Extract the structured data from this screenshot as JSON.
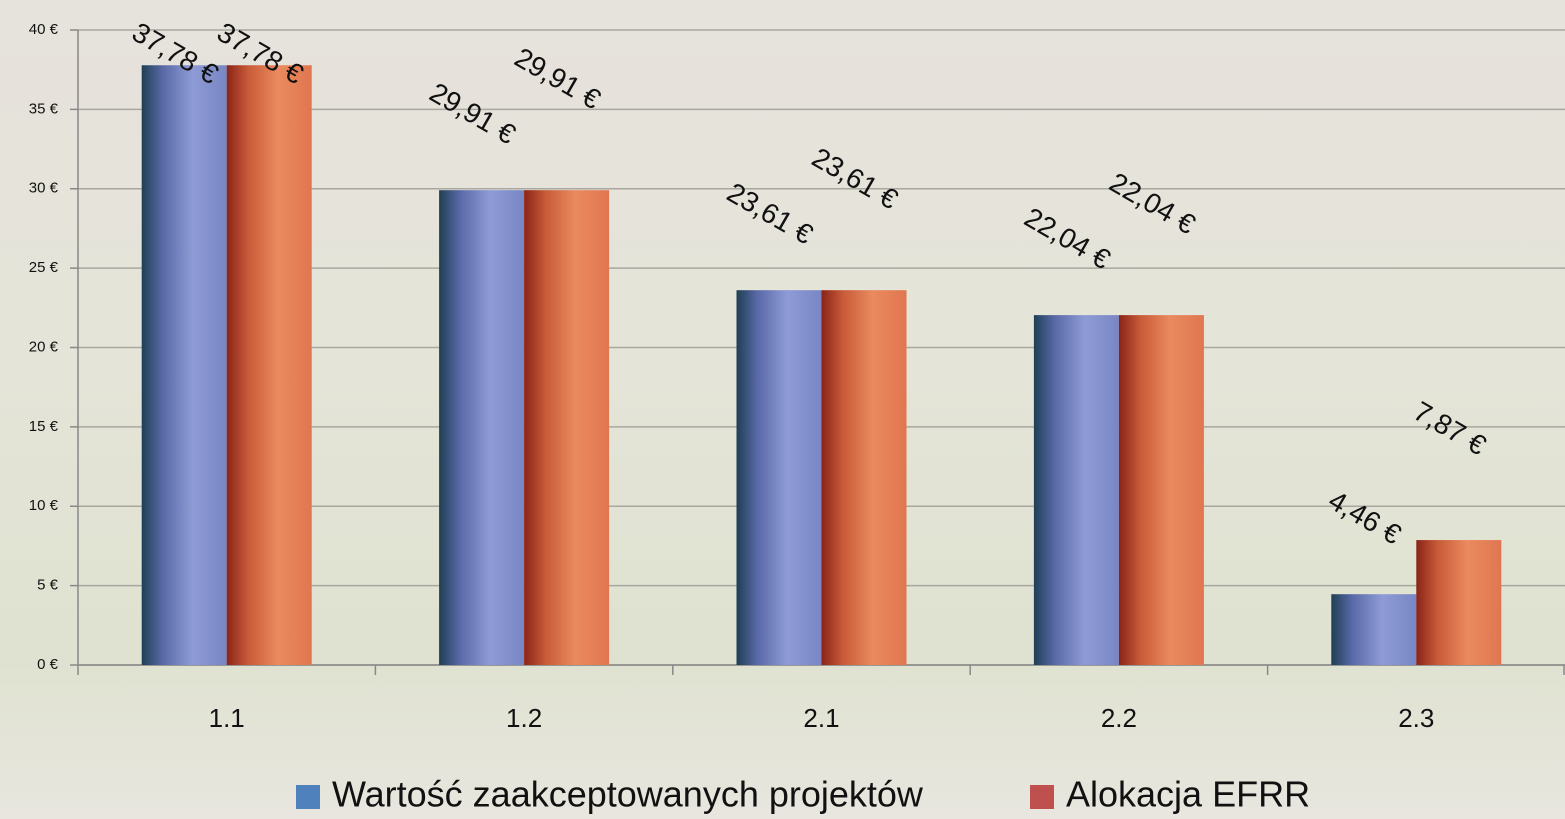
{
  "chart_data": {
    "type": "bar",
    "categories": [
      "1.1",
      "1.2",
      "2.1",
      "2.2",
      "2.3"
    ],
    "series": [
      {
        "name": "Wartość zaakceptowanych projektów",
        "color": "#4f81bd",
        "values": [
          37.78,
          29.91,
          23.61,
          22.04,
          4.46
        ],
        "value_labels": [
          "37,78 €",
          "29,91 €",
          "23,61 €",
          "22,04 €",
          "4,46 €"
        ]
      },
      {
        "name": "Alokacja EFRR",
        "color": "#c0504d",
        "values": [
          37.78,
          29.91,
          23.61,
          22.04,
          7.87
        ],
        "value_labels": [
          "37,78 €",
          "29,91 €",
          "23,61 €",
          "22,04 €",
          "7,87 €"
        ]
      }
    ],
    "ylim": [
      0,
      40
    ],
    "yticks": [
      {
        "value": 0,
        "label": "0 €"
      },
      {
        "value": 5,
        "label": "5 €"
      },
      {
        "value": 10,
        "label": "10 €"
      },
      {
        "value": 15,
        "label": "15 €"
      },
      {
        "value": 20,
        "label": "20 €"
      },
      {
        "value": 25,
        "label": "25 €"
      },
      {
        "value": 30,
        "label": "30 €"
      },
      {
        "value": 35,
        "label": "35 €"
      },
      {
        "value": 40,
        "label": "40 €"
      }
    ],
    "grid": true,
    "legend": "bottom"
  }
}
